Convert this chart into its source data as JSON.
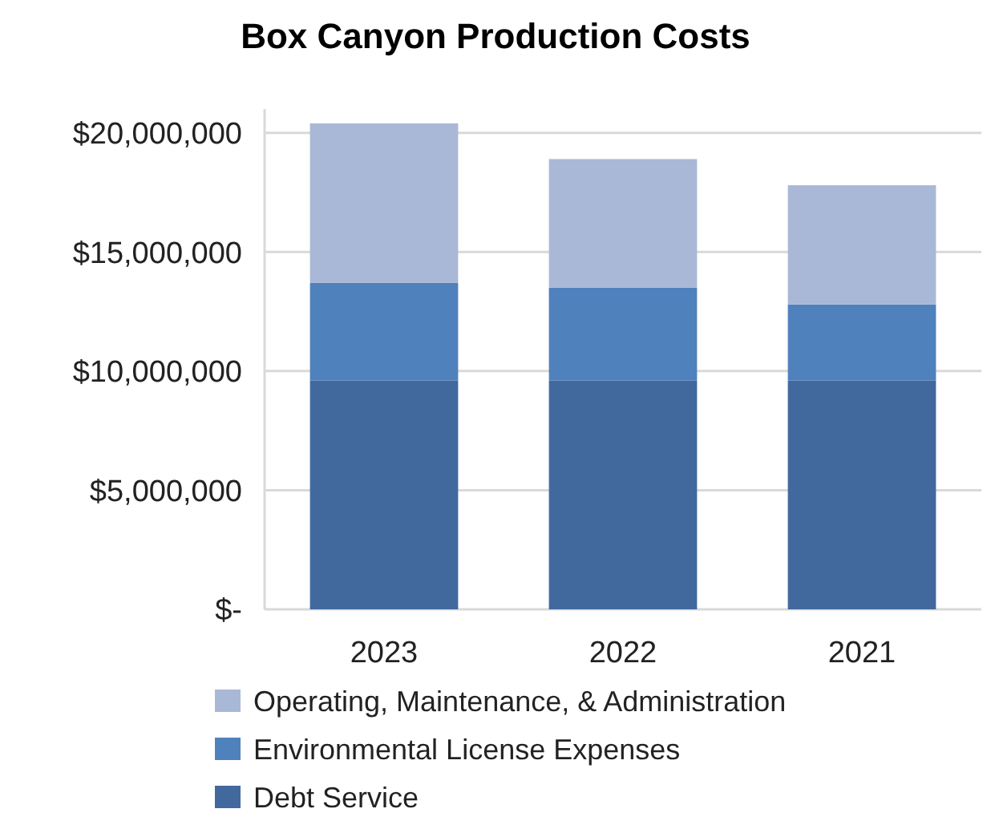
{
  "chart_data": {
    "type": "bar",
    "title": "Box Canyon Production Costs",
    "stacked": true,
    "categories": [
      "2023",
      "2022",
      "2021"
    ],
    "series": [
      {
        "name": "Debt Service",
        "color": "#41699e",
        "values": [
          9600000,
          9600000,
          9600000
        ]
      },
      {
        "name": "Environmental License Expenses",
        "color": "#4f81bd",
        "values": [
          4100000,
          3900000,
          3200000
        ]
      },
      {
        "name": "Operating, Maintenance, & Administration",
        "color": "#a9b8d6",
        "values": [
          6700000,
          5400000,
          5000000
        ]
      }
    ],
    "ylim": [
      0,
      21000000
    ],
    "yticks": [
      {
        "value": 0,
        "label": "$-"
      },
      {
        "value": 5000000,
        "label": "$5,000,000"
      },
      {
        "value": 10000000,
        "label": "$10,000,000"
      },
      {
        "value": 15000000,
        "label": "$15,000,000"
      },
      {
        "value": 20000000,
        "label": "$20,000,000"
      }
    ],
    "grid": "y",
    "legend": "bottom"
  }
}
